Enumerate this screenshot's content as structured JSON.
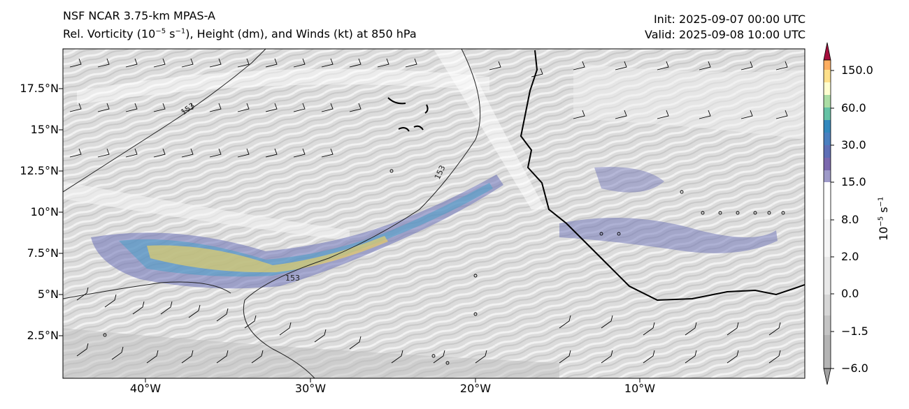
{
  "header": {
    "model": "NSF NCAR 3.75-km MPAS-A",
    "field_prefix": "Rel. Vorticity (10",
    "field_exp1": "−5",
    "field_mid": " s",
    "field_exp2": "−1",
    "field_suffix": "), Height (dm), and Winds (kt) at 850 hPa",
    "init": "Init: 2025-09-07 00:00 UTC",
    "valid": "Valid: 2025-09-08 10:00 UTC"
  },
  "map": {
    "lat_labels": [
      "17.5°N",
      "15°N",
      "12.5°N",
      "10°N",
      "7.5°N",
      "5°N",
      "2.5°N"
    ],
    "lon_labels": [
      "40°W",
      "30°W",
      "20°W",
      "10°W"
    ],
    "contour_labels": [
      "153",
      "153",
      "153"
    ],
    "colors": {
      "frame": "#000000",
      "background": "#d9d9d9",
      "coast": "#000000",
      "vort_low": "#6a6fb6",
      "vort_mid": "#4aa0c8",
      "vort_high": "#f6d65a",
      "vort_max": "#b2182b"
    }
  },
  "colorbar": {
    "title_base": "10",
    "title_exp1": "−5",
    "title_unit": " s",
    "title_exp2": "−1",
    "labels": [
      "150.0",
      "60.0",
      "30.0",
      "15.0",
      "8.0",
      "2.0",
      "0.0",
      "−1.5",
      "−6.0"
    ],
    "colors": [
      "#fdae61",
      "#fee08b",
      "#abdda4",
      "#66c2a5",
      "#3288bd",
      "#5e75b6",
      "#7b68ae",
      "#9e9ac8",
      "#ffffff",
      "#f5f5f5",
      "#e8e8e8",
      "#dcdcdc",
      "#c8c8c8",
      "#b4b4b4"
    ],
    "top_arrow_color": "#a50f3c",
    "bottom_arrow_color": "#a0a0a0"
  }
}
